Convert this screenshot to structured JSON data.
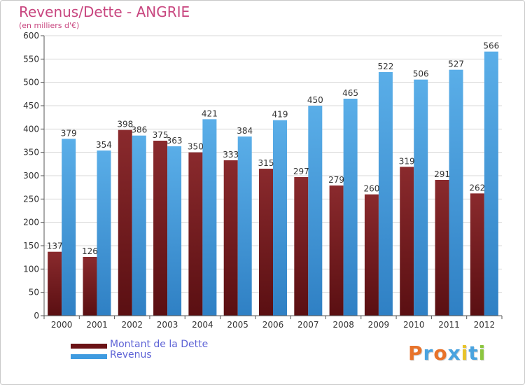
{
  "header": {
    "title": "Revenus/Dette - ANGRIE",
    "subtitle": "(en milliers d'€)"
  },
  "logo": {
    "text": "Proxiti"
  },
  "colors": {
    "dette": "#7d1f22",
    "revenus": "#3f9be0",
    "title": "#c8467f",
    "legend_text": "#5e63d6",
    "grid": "#d9d9d9"
  },
  "chart_data": {
    "type": "bar",
    "title": "Revenus/Dette - ANGRIE",
    "subtitle": "(en milliers d'€)",
    "xlabel": "",
    "ylabel": "",
    "categories": [
      "2000",
      "2001",
      "2002",
      "2003",
      "2004",
      "2005",
      "2006",
      "2007",
      "2008",
      "2009",
      "2010",
      "2011",
      "2012"
    ],
    "series": [
      {
        "name": "Montant de la Dette",
        "values": [
          137,
          126,
          398,
          375,
          350,
          333,
          315,
          297,
          279,
          260,
          319,
          291,
          262
        ]
      },
      {
        "name": "Revenus",
        "values": [
          379,
          354,
          386,
          363,
          421,
          384,
          419,
          450,
          465,
          522,
          506,
          527,
          566
        ]
      }
    ],
    "ylim": [
      0,
      600
    ],
    "yticks": [
      0,
      50,
      100,
      150,
      200,
      250,
      300,
      350,
      400,
      450,
      500,
      550,
      600
    ],
    "grid": true,
    "legend_position": "bottom-left"
  }
}
